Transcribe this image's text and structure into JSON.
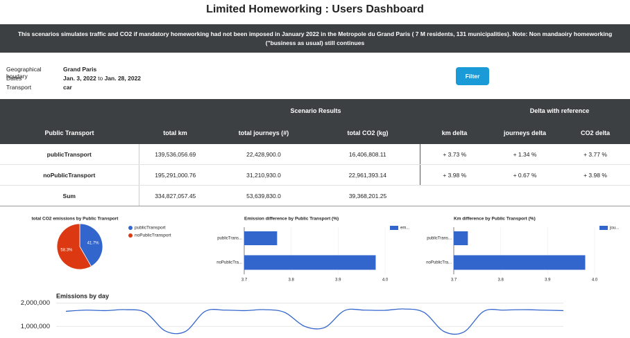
{
  "header": {
    "title": "Limited Homeworking : Users Dashboard"
  },
  "banner": {
    "text": "This scenarios simulates traffic and CO2 if mandatory homeworking had not been imposed in January 2022 in the Metropole du Grand Paris ( 7 M residents, 131 municipalities). Note: Non mandaoiry homeworking (\"business as usual) still continues"
  },
  "filters": {
    "geo": {
      "label": "Geographical boudary",
      "value": "Grand Paris"
    },
    "dates": {
      "label": "Dates",
      "from": "Jan. 3, 2022",
      "to_word": "to",
      "to": "Jan. 28, 2022"
    },
    "transport": {
      "label": "Transport",
      "value": "car"
    },
    "button": "Filter"
  },
  "table": {
    "group_headers": [
      "Scenario Results",
      "Delta with reference"
    ],
    "columns": [
      "Public Transport",
      "total km",
      "total journeys (#)",
      "total CO2 (kg)",
      "km delta",
      "journeys delta",
      "CO2 delta"
    ],
    "rows": [
      [
        "publicTransport",
        "139,536,056.69",
        "22,428,900.0",
        "16,406,808.11",
        "+ 3.73 %",
        "+ 1.34 %",
        "+ 3.77 %"
      ],
      [
        "noPublicTransport",
        "195,291,000.76",
        "31,210,930.0",
        "22,961,393.14",
        "+ 3.98 %",
        "+ 0.67 %",
        "+ 3.98 %"
      ]
    ],
    "sum": [
      "Sum",
      "334,827,057.45",
      "53,639,830.0",
      "39,368,201.25"
    ]
  },
  "chart_data": [
    {
      "type": "pie",
      "title": "total CO2 emissions by Public Transport",
      "categories": [
        "publicTransport",
        "noPublicTransport"
      ],
      "values": [
        41.7,
        58.3
      ],
      "value_labels": [
        "41.7%",
        "58.3%"
      ],
      "colors": [
        "#3366cc",
        "#dc3912"
      ],
      "legend": "right"
    },
    {
      "type": "bar",
      "orientation": "horizontal",
      "title": "Emission difference by Public Transport (%)",
      "categories": [
        "publicTrans...",
        "noPublicTra..."
      ],
      "series": [
        {
          "name": "em...",
          "color": "#3366cc",
          "values": [
            3.77,
            3.98
          ]
        }
      ],
      "xlim": [
        3.7,
        4.0
      ],
      "xticks": [
        3.7,
        3.8,
        3.9,
        {
          "value": 4,
          "label": "4.0"
        }
      ],
      "grid": true,
      "legend": "right"
    },
    {
      "type": "bar",
      "orientation": "horizontal",
      "title": "Km difference by Public Transport (%)",
      "categories": [
        "publicTrans...",
        "noPublicTra..."
      ],
      "series": [
        {
          "name": "jou...",
          "color": "#3366cc",
          "values": [
            3.73,
            3.98
          ]
        }
      ],
      "xlim": [
        3.7,
        4.0
      ],
      "xticks": [
        3.7,
        3.8,
        3.9,
        {
          "value": 4,
          "label": "4.0"
        }
      ],
      "grid": true,
      "legend": "right"
    },
    {
      "type": "line",
      "title": "Emissions by day",
      "categories": [
        null,
        null,
        null,
        null,
        null,
        null,
        null,
        null,
        null,
        null,
        null,
        null,
        null,
        null,
        null,
        null,
        null,
        null,
        null,
        null,
        null,
        null,
        null,
        null,
        null,
        null
      ],
      "values": [
        1650000,
        1700000,
        1680000,
        1720000,
        1600000,
        800000,
        780000,
        1650000,
        1700000,
        1680000,
        1720000,
        1600000,
        1000000,
        950000,
        1680000,
        1700000,
        1690000,
        1750000,
        1600000,
        780000,
        760000,
        1650000,
        1700000,
        1720000,
        1700000,
        1680000
      ],
      "color": "#3366cc",
      "ylim": [
        500000,
        2200000
      ],
      "yticks": [
        {
          "value": 1000000,
          "label": "1,000,000"
        },
        {
          "value": 2000000,
          "label": "2,000,000"
        }
      ],
      "grid": true
    }
  ]
}
